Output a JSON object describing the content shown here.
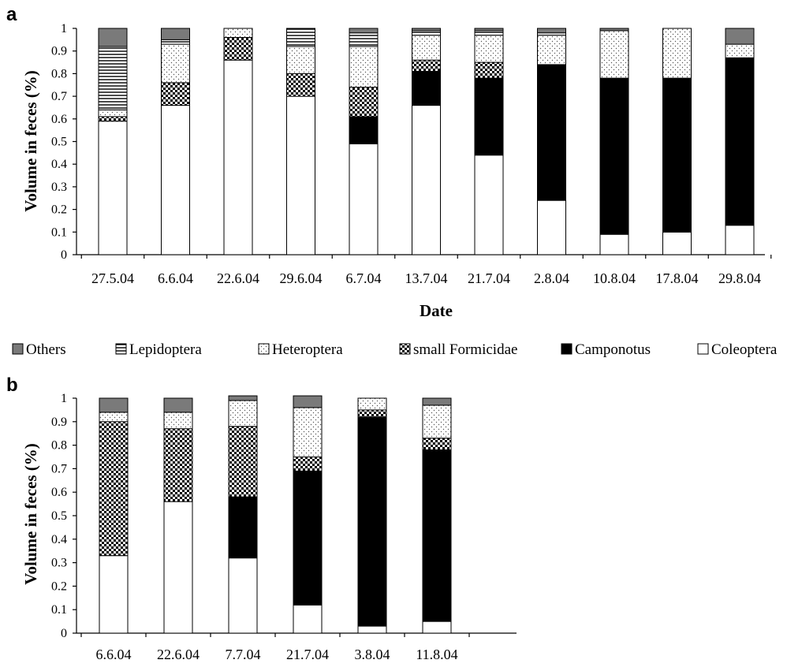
{
  "colors": {
    "others": "#7a7a7a",
    "lepidoptera": "#ffffff",
    "heteroptera": "#ffffff",
    "small_formicidae": "#ffffff",
    "camponotus": "#000000",
    "coleoptera": "#ffffff",
    "axis": "#000000"
  },
  "legend": {
    "items": [
      {
        "label": "Others",
        "pattern": "others"
      },
      {
        "label": "Lepidoptera",
        "pattern": "lepidoptera"
      },
      {
        "label": "Heteroptera",
        "pattern": "heteroptera"
      },
      {
        "label": "small Formicidae",
        "pattern": "small_formicidae"
      },
      {
        "label": "Camponotus",
        "pattern": "camponotus"
      },
      {
        "label": "Coleoptera",
        "pattern": "coleoptera"
      }
    ]
  },
  "chart_data": [
    {
      "type": "bar",
      "stacked": true,
      "panel_label": "a",
      "title": "",
      "xlabel": "Date",
      "ylabel": "Volume in feces (%)",
      "ylim": [
        0,
        1
      ],
      "yticks": [
        "0",
        "0.1",
        "0.2",
        "0.3",
        "0.4",
        "0.5",
        "0.6",
        "0.7",
        "0.8",
        "0.9",
        "1"
      ],
      "categories": [
        "27.5.04",
        "6.6.04",
        "22.6.04",
        "29.6.04",
        "6.7.04",
        "13.7.04",
        "21.7.04",
        "2.8.04",
        "10.8.04",
        "17.8.04",
        "29.8.04"
      ],
      "series": [
        {
          "name": "Coleoptera",
          "pattern": "coleoptera",
          "values": [
            0.59,
            0.66,
            0.86,
            0.7,
            0.49,
            0.66,
            0.44,
            0.24,
            0.09,
            0.1,
            0.13
          ]
        },
        {
          "name": "Camponotus",
          "pattern": "camponotus",
          "values": [
            0.0,
            0.0,
            0.0,
            0.0,
            0.12,
            0.15,
            0.34,
            0.6,
            0.69,
            0.68,
            0.74
          ]
        },
        {
          "name": "small Formicidae",
          "pattern": "small_formicidae",
          "values": [
            0.02,
            0.1,
            0.1,
            0.1,
            0.13,
            0.05,
            0.07,
            0.0,
            0.0,
            0.0,
            0.0
          ]
        },
        {
          "name": "Heteroptera",
          "pattern": "heteroptera",
          "values": [
            0.03,
            0.17,
            0.04,
            0.12,
            0.18,
            0.11,
            0.12,
            0.13,
            0.21,
            0.22,
            0.06
          ]
        },
        {
          "name": "Lepidoptera",
          "pattern": "lepidoptera",
          "values": [
            0.28,
            0.02,
            0.0,
            0.08,
            0.06,
            0.02,
            0.02,
            0.01,
            0.0,
            0.0,
            0.0
          ]
        },
        {
          "name": "Others",
          "pattern": "others",
          "values": [
            0.08,
            0.05,
            0.0,
            0.0,
            0.02,
            0.01,
            0.01,
            0.02,
            0.01,
            0.0,
            0.07
          ]
        }
      ]
    },
    {
      "type": "bar",
      "stacked": true,
      "panel_label": "b",
      "title": "",
      "xlabel": "",
      "ylabel": "Volume in feces (%)",
      "ylim": [
        0,
        1
      ],
      "yticks": [
        "0",
        "0.1",
        "0.2",
        "0.3",
        "0.4",
        "0.5",
        "0.6",
        "0.7",
        "0.8",
        "0.9",
        "1"
      ],
      "categories": [
        "6.6.04",
        "22.6.04",
        "7.7.04",
        "21.7.04",
        "3.8.04",
        "11.8.04"
      ],
      "series": [
        {
          "name": "Coleoptera",
          "pattern": "coleoptera",
          "values": [
            0.33,
            0.56,
            0.32,
            0.12,
            0.03,
            0.05
          ]
        },
        {
          "name": "Camponotus",
          "pattern": "camponotus",
          "values": [
            0.0,
            0.0,
            0.26,
            0.57,
            0.89,
            0.73
          ]
        },
        {
          "name": "small Formicidae",
          "pattern": "small_formicidae",
          "values": [
            0.57,
            0.31,
            0.3,
            0.06,
            0.03,
            0.05
          ]
        },
        {
          "name": "Heteroptera",
          "pattern": "heteroptera",
          "values": [
            0.04,
            0.07,
            0.11,
            0.21,
            0.05,
            0.14
          ]
        },
        {
          "name": "Lepidoptera",
          "pattern": "lepidoptera",
          "values": [
            0.0,
            0.0,
            0.0,
            0.0,
            0.0,
            0.0
          ]
        },
        {
          "name": "Others",
          "pattern": "others",
          "values": [
            0.06,
            0.06,
            0.02,
            0.05,
            0.0,
            0.03
          ]
        }
      ]
    }
  ]
}
